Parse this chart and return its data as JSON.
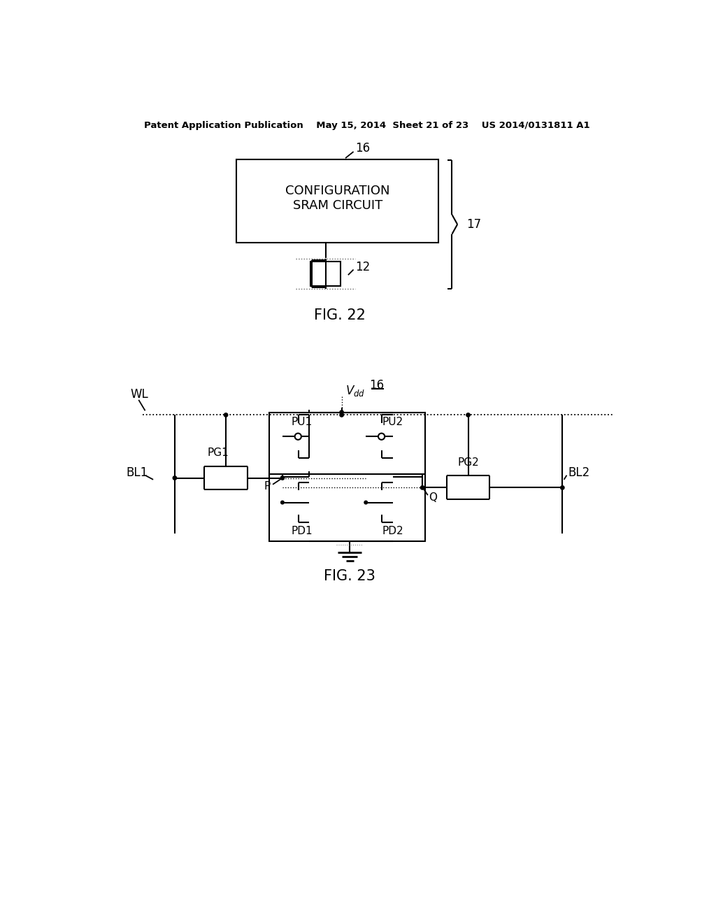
{
  "bg_color": "#ffffff",
  "header_text": "Patent Application Publication    May 15, 2014  Sheet 21 of 23    US 2014/0131811 A1",
  "fig22_label": "FIG. 22",
  "fig23_label": "FIG. 23",
  "label_16_fig22": "16",
  "label_17": "17",
  "label_12": "12",
  "label_16_fig23": "16",
  "label_WL": "WL",
  "label_BL1": "BL1",
  "label_BL2": "BL2",
  "label_PG1": "PG1",
  "label_PG2": "PG2",
  "label_PU1": "PU1",
  "label_PU2": "PU2",
  "label_PD1": "PD1",
  "label_PD2": "PD2",
  "label_P": "P",
  "label_Q": "Q"
}
